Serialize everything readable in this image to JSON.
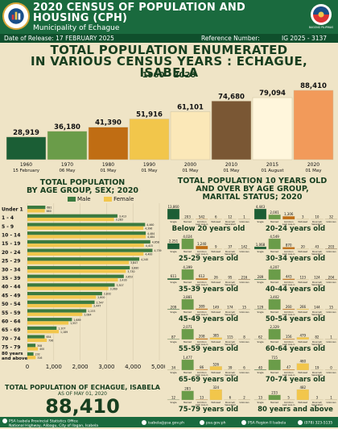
{
  "header": {
    "title_line1": "2020 CENSUS OF POPULATION AND",
    "title_line2": "HOUSING (CPH)",
    "subtitle": "Municipality of Echague",
    "release": "Date of Release: 17 FEBRUARY 2025",
    "reference": "Reference Number:",
    "reference_value": "IG 2025 - 3137",
    "right_logo_text": "BAGONG PILIPINAS"
  },
  "main_title_line1": "TOTAL POPULATION ENUMERATED",
  "main_title_line2": "IN VARIOUS CENSUS YEARS : ECHAGUE, ISABELA",
  "years_range": "1960 - 2020",
  "census_chart": {
    "type": "bar",
    "bars": [
      {
        "year": "1960",
        "date": "15 February",
        "value": 28919,
        "label": "28,919",
        "color": "#1b5e35"
      },
      {
        "year": "1970",
        "date": "06 May",
        "value": 36180,
        "label": "36,180",
        "color": "#6a9c49"
      },
      {
        "year": "1980",
        "date": "01 May",
        "value": 41390,
        "label": "41,390",
        "color": "#c06d13"
      },
      {
        "year": "1990",
        "date": "01 May",
        "value": 51916,
        "label": "51,916",
        "color": "#f2c64b"
      },
      {
        "year": "2000",
        "date": "01 May",
        "value": 61101,
        "label": "61,101",
        "color": "#fbe8b8"
      },
      {
        "year": "2010",
        "date": "01 May",
        "value": 74680,
        "label": "74,680",
        "color": "#7a5734"
      },
      {
        "year": "2015",
        "date": "01 August",
        "value": 79094,
        "label": "79,094",
        "color": "#fff6dc"
      },
      {
        "year": "2020",
        "date": "01 May",
        "value": 88410,
        "label": "88,410",
        "color": "#f29a5a"
      }
    ]
  },
  "age_panel": {
    "title_line1": "TOTAL POPULATION",
    "title_line2": "BY AGE GROUP, SEX; 2020",
    "legend": {
      "male": "Male",
      "female": "Female",
      "male_color": "#3b7a3f",
      "female_color": "#f2c64b"
    }
  },
  "chart_data": {
    "type": "bar",
    "title": "TOTAL POPULATION BY AGE GROUP, SEX; 2020",
    "categories": [
      "Under 1",
      "1 - 4",
      "5 - 9",
      "10 - 14",
      "15 - 19",
      "20 - 24",
      "25 - 29",
      "30 - 34",
      "35 - 39",
      "40 - 44",
      "45 - 49",
      "50 - 54",
      "55 - 59",
      "60 - 64",
      "65 - 69",
      "70 - 74",
      "75 - 79",
      "80 years and above"
    ],
    "series": [
      {
        "name": "Male",
        "values": [
          681,
          3413,
          4460,
          4484,
          4658,
          4739,
          4240,
          3880,
          3653,
          3307,
          2832,
          2547,
          2233,
          1689,
          1107,
          654,
          308,
          232
        ],
        "labels": [
          "681",
          "3,413",
          "4,460",
          "4,484",
          "4,658",
          "4,739",
          "4,240",
          "3,880",
          "3,653",
          "3,307",
          "2,832",
          "2,547",
          "2,233",
          "1,689",
          "1,107",
          "654",
          "308",
          "232"
        ]
      },
      {
        "name": "Female",
        "values": [
          660,
          3283,
          4396,
          4484,
          4415,
          4400,
          3847,
          3730,
          3430,
          3069,
          2600,
          2447,
          2084,
          1557,
          1189,
          736,
          400,
          316
        ],
        "labels": [
          "660",
          "3,283",
          "4,396",
          "4,484",
          "4,415",
          "4,400",
          "3,847",
          "3,730",
          "3,430",
          "3,069",
          "2,600",
          "2,447",
          "2,084",
          "1,557",
          "1,189",
          "736",
          "400",
          "316"
        ]
      }
    ],
    "xlim": [
      0,
      5000
    ],
    "xticks": [
      "0",
      "1,000",
      "2,000",
      "3,000",
      "4,000",
      "5,000"
    ]
  },
  "marital_panel": {
    "title_line1": "TOTAL POPULATION 10 YEARS OLD",
    "title_line2": "AND OVER BY AGE GROUP,",
    "title_line3": "MARITAL STATUS; 2020",
    "status_labels": [
      "Single",
      "Married",
      "Common Law/ Live-in",
      "Widowed",
      "Divorced/ Separated",
      "Unknown"
    ],
    "status_colors": [
      "#1b5e35",
      "#6a9c49",
      "#c06d13",
      "#f2c64b",
      "#fbe8b8",
      "#7a5734"
    ],
    "groups": [
      {
        "label": "Below 20 years old",
        "values": [
          13860,
          203,
          542,
          6,
          12,
          1
        ],
        "labels": [
          "13,860",
          "203",
          "542",
          "6",
          "12",
          "1"
        ]
      },
      {
        "label": "20-24 years old",
        "values": [
          4443,
          2001,
          1306,
          3,
          10,
          32
        ],
        "labels": [
          "4,443",
          "2,001",
          "1,306",
          "3",
          "10",
          "32"
        ]
      },
      {
        "label": "25-29 years old",
        "values": [
          2251,
          4024,
          1240,
          9,
          37,
          142
        ],
        "labels": [
          "2,251",
          "4,024",
          "1,240",
          "9",
          "37",
          "142"
        ]
      },
      {
        "label": "30-34 years old",
        "values": [
          1068,
          4549,
          870,
          20,
          43,
          203
        ],
        "labels": [
          "1,068",
          "4,549",
          "870",
          "20",
          "43",
          "203"
        ]
      },
      {
        "label": "35-39 years old",
        "values": [
          611,
          4399,
          612,
          26,
          95,
          216
        ],
        "labels": [
          "611",
          "4,399",
          "612",
          "26",
          "95",
          "216"
        ]
      },
      {
        "label": "40-44 years old",
        "values": [
          289,
          4207,
          443,
          123,
          124,
          204
        ],
        "labels": [
          "289",
          "4,207",
          "443",
          "123",
          "124",
          "204"
        ]
      },
      {
        "label": "45-49 years old",
        "values": [
          209,
          3881,
          389,
          149,
          174,
          15
        ],
        "labels": [
          "209",
          "3,881",
          "389",
          "149",
          "174",
          "15"
        ]
      },
      {
        "label": "50-54 years old",
        "values": [
          129,
          3402,
          260,
          266,
          144,
          15
        ],
        "labels": [
          "129",
          "3,402",
          "260",
          "266",
          "144",
          "15"
        ]
      },
      {
        "label": "55-59 years old",
        "values": [
          87,
          2071,
          208,
          385,
          115,
          8
        ],
        "labels": [
          "87",
          "2,071",
          "208",
          "385",
          "115",
          "8"
        ]
      },
      {
        "label": "60-64 years old",
        "values": [
          62,
          2329,
          156,
          479,
          82,
          1
        ],
        "labels": [
          "62",
          "2,329",
          "156",
          "479",
          "82",
          "1"
        ]
      },
      {
        "label": "65-69 years old",
        "values": [
          34,
          1477,
          86,
          526,
          39,
          6
        ],
        "labels": [
          "34",
          "1,477",
          "86",
          "526",
          "39",
          "6"
        ]
      },
      {
        "label": "70-74 years old",
        "values": [
          40,
          715,
          47,
          460,
          19,
          0
        ],
        "labels": [
          "40",
          "715",
          "47",
          "460",
          "19",
          "0"
        ]
      },
      {
        "label": "75-79 years old",
        "values": [
          12,
          283,
          13,
          324,
          6,
          2
        ],
        "labels": [
          "12",
          "283",
          "13",
          "324",
          "6",
          "2"
        ]
      },
      {
        "label": "80 years and above",
        "values": [
          13,
          233,
          5,
          482,
          3,
          1
        ],
        "labels": [
          "13",
          "233",
          "5",
          "482",
          "3",
          "1"
        ]
      }
    ]
  },
  "total": {
    "title": "TOTAL POPULATION OF ECHAGUE, ISABELA",
    "sub": "AS OF MAY 01, 2020",
    "value": "88,410"
  },
  "footer": {
    "office": "PSA Isabela Provincial Statistics Office",
    "address": "National Highway, Alibagu, City of Ilagan, Isabela",
    "email": "isabela@psa.gov.ph",
    "web": "psa.gov.ph",
    "facebook": "PSA Region II Isabela",
    "phone": "(078) 323-5135"
  }
}
